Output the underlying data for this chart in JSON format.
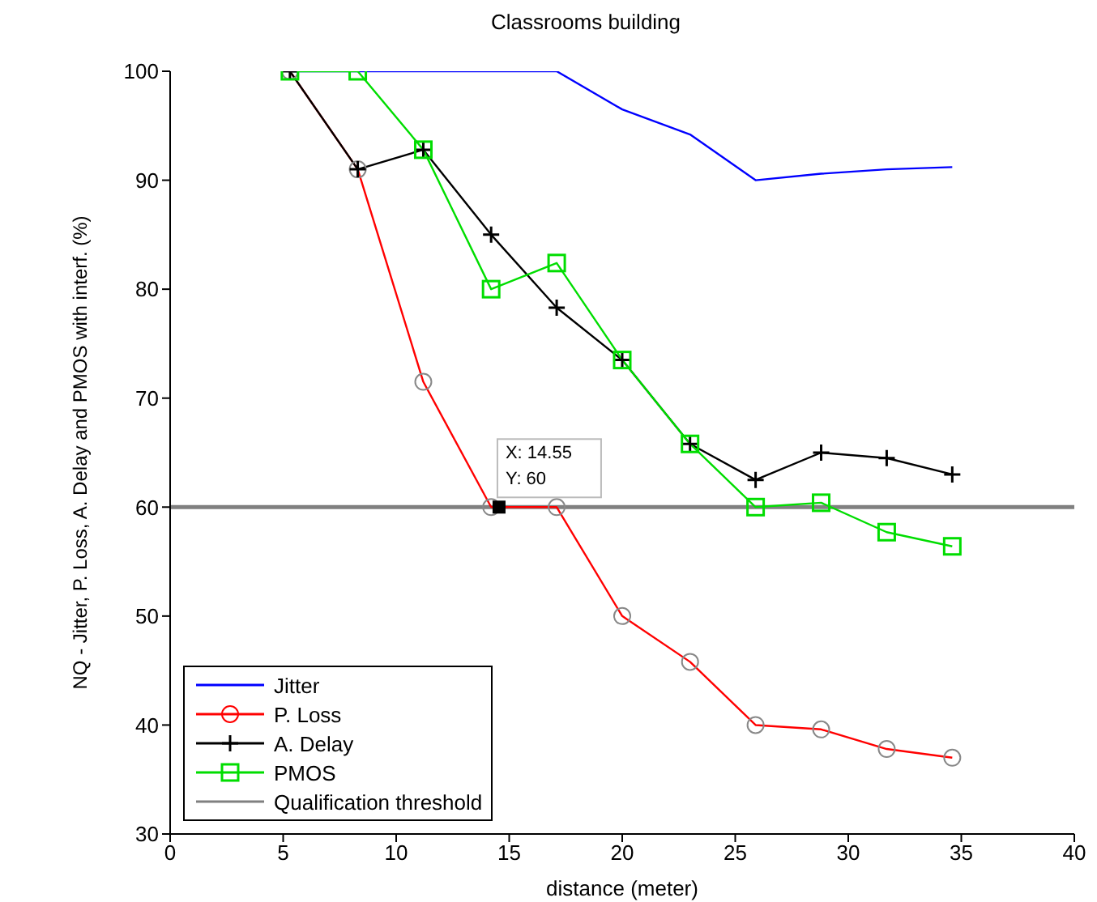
{
  "chart_data": {
    "type": "line",
    "title": "Classrooms building",
    "xlabel": "distance (meter)",
    "ylabel": "NQ - Jitter, P. Loss, A. Delay and PMOS with interf. (%)",
    "x": [
      5.3,
      8.3,
      11.2,
      14.2,
      17.1,
      20,
      23,
      25.9,
      28.8,
      31.7,
      34.6
    ],
    "series": [
      {
        "name": "Jitter",
        "color": "#0000ff",
        "marker": "none",
        "values": [
          100,
          100,
          100,
          100,
          100,
          96.5,
          94.2,
          90,
          90.6,
          91,
          91.2
        ]
      },
      {
        "name": "P. Loss",
        "color": "#ff0000",
        "marker": "circle",
        "values": [
          100,
          91,
          71.5,
          60,
          60,
          50,
          45.8,
          40,
          39.6,
          37.8,
          37
        ]
      },
      {
        "name": "A. Delay",
        "color": "#000000",
        "marker": "cross",
        "values": [
          100,
          91,
          92.8,
          85,
          78.3,
          73.5,
          65.8,
          62.5,
          65,
          64.5,
          63
        ]
      },
      {
        "name": "PMOS",
        "color": "#00dd00",
        "marker": "square",
        "values": [
          100,
          100,
          92.8,
          80,
          82.4,
          73.5,
          65.8,
          60,
          60.4,
          57.7,
          56.4
        ]
      }
    ],
    "ref_lines": [
      {
        "axis": "y",
        "value": 60,
        "label": "Qualification threshold",
        "color": "#808080"
      }
    ],
    "annotations": [
      {
        "text": "X: 14.55\nY: 60",
        "x": 14.55,
        "y": 60
      }
    ],
    "xlim": [
      0,
      40
    ],
    "xticks": [
      0,
      5,
      10,
      15,
      20,
      25,
      30,
      35,
      40
    ],
    "ylim": [
      30,
      100
    ],
    "yticks": [
      30,
      40,
      50,
      60,
      70,
      80,
      90,
      100
    ],
    "grid": false,
    "legend": "bottom left"
  }
}
